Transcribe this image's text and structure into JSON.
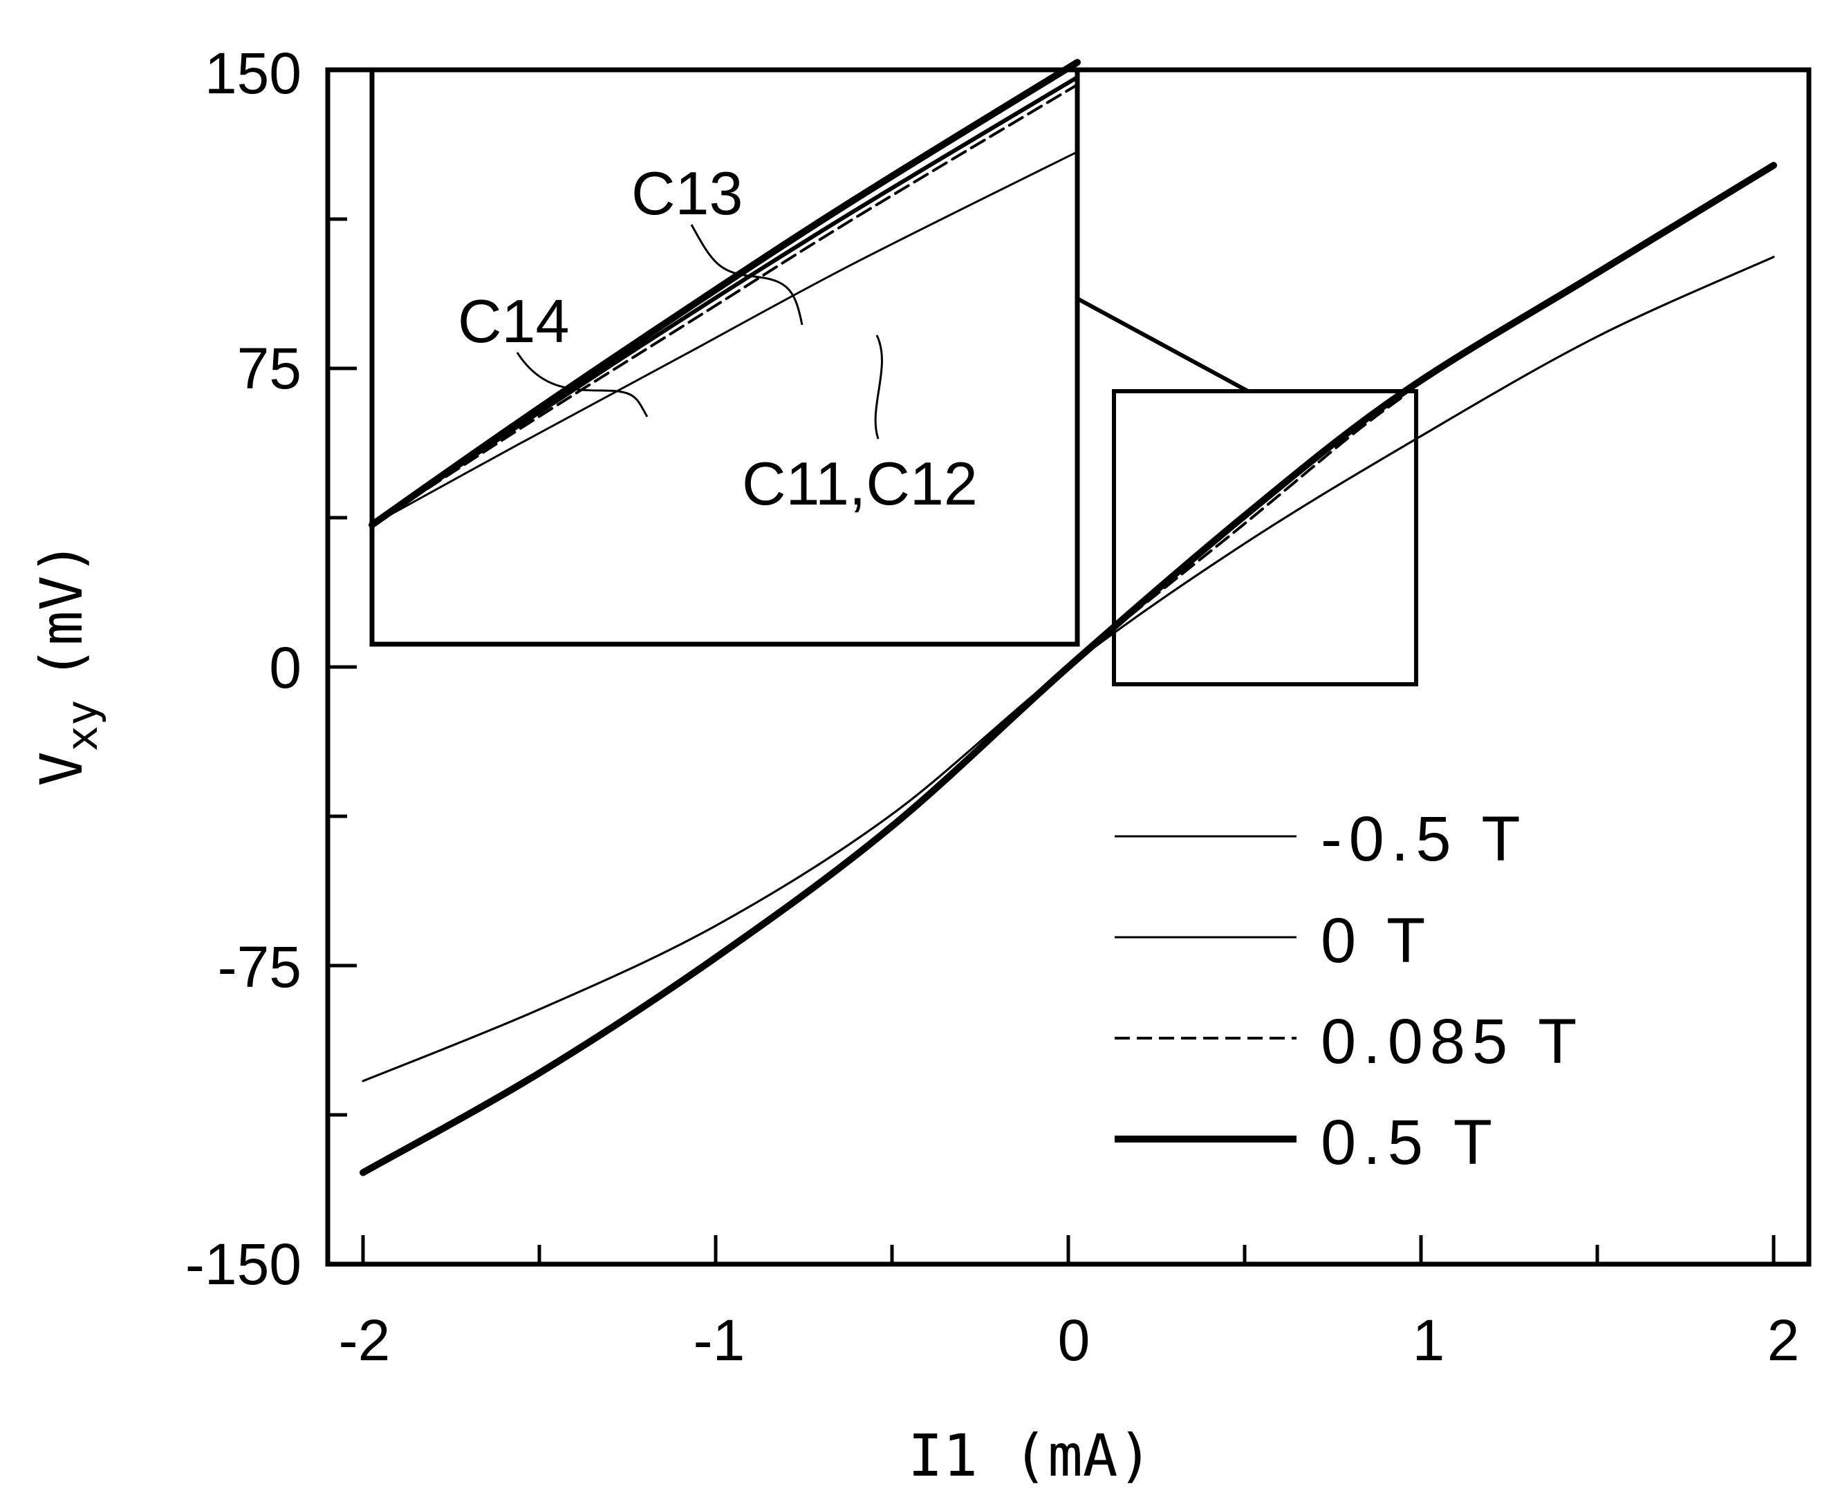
{
  "chart_data": {
    "type": "line",
    "xlabel": "I1 (mA)",
    "ylabel": "V",
    "ylabel_subscript": "xy",
    "ylabel_unit": "(mV)",
    "xlim": [
      -2.1,
      2.1
    ],
    "ylim": [
      -150,
      150
    ],
    "x_ticks": [
      "-2",
      "-1",
      "0",
      "1",
      "2"
    ],
    "y_ticks": [
      "150",
      "75",
      "0",
      "-75",
      "-150"
    ],
    "grid": false,
    "legend_position": "bottom-right",
    "series": [
      {
        "name": "-0.5 T",
        "style": "thin",
        "x": [
          -2,
          -1.5,
          -1,
          -0.5,
          0,
          0.5,
          1,
          1.5,
          2
        ],
        "y": [
          -104,
          -86,
          -65,
          -37,
          0,
          31,
          58,
          83,
          103
        ]
      },
      {
        "name": "0 T",
        "style": "thin",
        "x": [
          -2,
          -1.5,
          -1,
          -0.5,
          0,
          0.5,
          1,
          1.5,
          2
        ],
        "y": [
          -104,
          -86,
          -65,
          -37,
          0,
          31,
          58,
          83,
          103
        ]
      },
      {
        "name": "0.085 T",
        "style": "dashed",
        "x": [
          -2,
          -1.5,
          -1,
          -0.5,
          0,
          0.5,
          0.8,
          0.95
        ],
        "y": [
          -127,
          -102,
          -73,
          -40,
          0,
          36,
          58,
          68
        ]
      },
      {
        "name": "0.5 T",
        "style": "thick",
        "x": [
          -2,
          -1.5,
          -1,
          -0.5,
          0,
          0.5,
          0.95,
          1.5,
          2
        ],
        "y": [
          -127,
          -102,
          -73,
          -40,
          0,
          38,
          69,
          99,
          126
        ]
      }
    ],
    "inset": {
      "xlim": [
        0.12,
        0.97
      ],
      "ylim": [
        -8,
        69
      ],
      "labels": [
        "C13",
        "C14",
        "C11,C12"
      ],
      "series": [
        {
          "name": "C11,C12",
          "style": "thin",
          "x": [
            0.12,
            0.3,
            0.5,
            0.7,
            0.97
          ],
          "y": [
            8,
            19,
            31,
            43,
            58
          ]
        },
        {
          "name": "0.085 T",
          "style": "dashed",
          "x": [
            0.12,
            0.3,
            0.5,
            0.7,
            0.97
          ],
          "y": [
            8,
            21,
            35,
            49,
            67
          ]
        },
        {
          "name": "C13",
          "style": "medium",
          "x": [
            0.12,
            0.3,
            0.5,
            0.7,
            0.97
          ],
          "y": [
            8,
            21.5,
            36,
            50,
            68
          ]
        },
        {
          "name": "C14",
          "style": "thick",
          "x": [
            0.12,
            0.3,
            0.5,
            0.7,
            0.97
          ],
          "y": [
            8,
            22,
            37,
            51.5,
            70
          ]
        }
      ]
    }
  }
}
